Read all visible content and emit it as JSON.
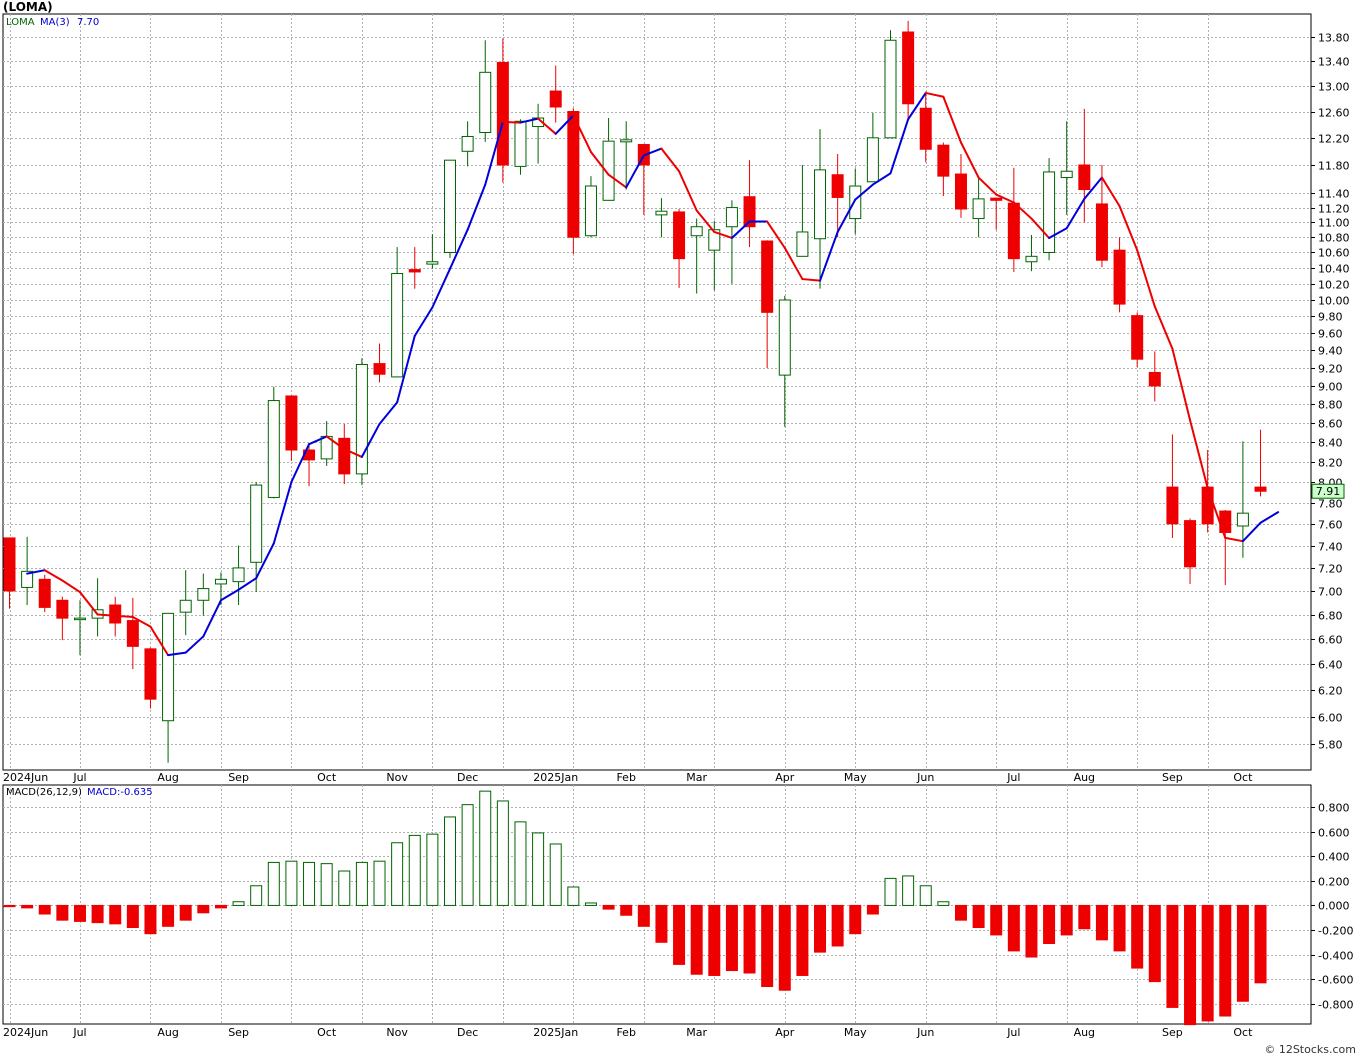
{
  "title": "(LOMA)",
  "credit": "© 12Stocks.com",
  "legend": {
    "price_symbol": "LOMA",
    "ma_label": "MA(3)",
    "ma_value": "7.70",
    "macd_label": "MACD(26,12,9)",
    "macd_value": "MACD:-0.635"
  },
  "last_price_label": "7.91",
  "colors": {
    "up": "#006400",
    "down": "#ee0000",
    "ma_up": "#0000dd",
    "ma_down": "#ee0000",
    "last_price_bg": "#ccffcc",
    "grid": "#b0b0b0"
  },
  "x_labels": [
    "2024Jun",
    "Jul",
    "Aug",
    "Sep",
    "Oct",
    "Nov",
    "Dec",
    "2025Jan",
    "Feb",
    "Mar",
    "Apr",
    "May",
    "Jun",
    "Jul",
    "Aug",
    "Sep",
    "Oct"
  ],
  "chart_data": [
    {
      "type": "candlestick",
      "title": "(LOMA)",
      "series_name": "LOMA",
      "y_ticks": [
        "5.80",
        "6.00",
        "6.20",
        "6.40",
        "6.60",
        "6.80",
        "7.00",
        "7.20",
        "7.40",
        "7.60",
        "7.80",
        "8.00",
        "8.20",
        "8.40",
        "8.60",
        "8.80",
        "9.00",
        "9.20",
        "9.40",
        "9.60",
        "9.80",
        "10.00",
        "10.20",
        "10.40",
        "10.60",
        "10.80",
        "11.00",
        "11.20",
        "11.40",
        "11.80",
        "12.20",
        "12.60",
        "13.00",
        "13.40",
        "13.80"
      ],
      "scale": "log",
      "ylim": [
        5.62,
        14.2
      ],
      "grid": true,
      "candles": [
        {
          "o": 7.47,
          "h": 7.47,
          "l": 6.85,
          "c": 7.0
        },
        {
          "o": 7.03,
          "h": 7.48,
          "l": 6.88,
          "c": 7.17
        },
        {
          "o": 7.1,
          "h": 7.14,
          "l": 6.82,
          "c": 6.86
        },
        {
          "o": 6.92,
          "h": 6.95,
          "l": 6.59,
          "c": 6.77
        },
        {
          "o": 6.77,
          "h": 6.92,
          "l": 6.47,
          "c": 6.77
        },
        {
          "o": 6.77,
          "h": 7.11,
          "l": 6.62,
          "c": 6.84
        },
        {
          "o": 6.88,
          "h": 6.95,
          "l": 6.62,
          "c": 6.73
        },
        {
          "o": 6.75,
          "h": 6.94,
          "l": 6.36,
          "c": 6.54
        },
        {
          "o": 6.52,
          "h": 6.53,
          "l": 6.06,
          "c": 6.13
        },
        {
          "o": 5.97,
          "h": 6.81,
          "l": 5.67,
          "c": 6.81
        },
        {
          "o": 6.82,
          "h": 7.18,
          "l": 6.63,
          "c": 6.92
        },
        {
          "o": 6.92,
          "h": 7.15,
          "l": 6.79,
          "c": 7.02
        },
        {
          "o": 7.06,
          "h": 7.16,
          "l": 6.88,
          "c": 7.1
        },
        {
          "o": 7.08,
          "h": 7.4,
          "l": 6.88,
          "c": 7.2
        },
        {
          "o": 7.25,
          "h": 8.0,
          "l": 6.99,
          "c": 7.97
        },
        {
          "o": 7.85,
          "h": 8.99,
          "l": 7.84,
          "c": 8.84
        },
        {
          "o": 8.89,
          "h": 8.89,
          "l": 8.21,
          "c": 8.32
        },
        {
          "o": 8.32,
          "h": 8.38,
          "l": 7.96,
          "c": 8.22
        },
        {
          "o": 8.23,
          "h": 8.62,
          "l": 8.16,
          "c": 8.46
        },
        {
          "o": 8.44,
          "h": 8.59,
          "l": 7.98,
          "c": 8.08
        },
        {
          "o": 8.08,
          "h": 9.31,
          "l": 7.97,
          "c": 9.24
        },
        {
          "o": 9.25,
          "h": 9.48,
          "l": 9.04,
          "c": 9.13
        },
        {
          "o": 9.1,
          "h": 10.67,
          "l": 9.1,
          "c": 10.33
        },
        {
          "o": 10.38,
          "h": 10.67,
          "l": 10.14,
          "c": 10.35
        },
        {
          "o": 10.45,
          "h": 10.84,
          "l": 10.39,
          "c": 10.48
        },
        {
          "o": 10.6,
          "h": 11.86,
          "l": 10.53,
          "c": 11.87
        },
        {
          "o": 12.0,
          "h": 12.45,
          "l": 11.78,
          "c": 12.22
        },
        {
          "o": 12.28,
          "h": 13.75,
          "l": 12.14,
          "c": 13.22
        },
        {
          "o": 13.38,
          "h": 13.78,
          "l": 11.55,
          "c": 11.8
        },
        {
          "o": 11.78,
          "h": 12.48,
          "l": 11.66,
          "c": 12.45
        },
        {
          "o": 12.37,
          "h": 12.72,
          "l": 11.82,
          "c": 12.5
        },
        {
          "o": 12.92,
          "h": 13.33,
          "l": 12.43,
          "c": 12.67
        },
        {
          "o": 12.6,
          "h": 12.65,
          "l": 10.58,
          "c": 10.8
        },
        {
          "o": 10.82,
          "h": 11.64,
          "l": 10.8,
          "c": 11.5
        },
        {
          "o": 11.3,
          "h": 12.5,
          "l": 11.33,
          "c": 12.15
        },
        {
          "o": 12.14,
          "h": 12.45,
          "l": 11.45,
          "c": 12.17
        },
        {
          "o": 12.1,
          "h": 12.11,
          "l": 11.1,
          "c": 11.8
        },
        {
          "o": 11.1,
          "h": 11.33,
          "l": 10.8,
          "c": 11.15
        },
        {
          "o": 11.14,
          "h": 11.18,
          "l": 10.15,
          "c": 10.52
        },
        {
          "o": 10.82,
          "h": 11.05,
          "l": 10.08,
          "c": 10.94
        },
        {
          "o": 10.63,
          "h": 11.02,
          "l": 10.12,
          "c": 10.9
        },
        {
          "o": 10.94,
          "h": 11.3,
          "l": 10.2,
          "c": 11.2
        },
        {
          "o": 11.35,
          "h": 11.87,
          "l": 10.67,
          "c": 10.94
        },
        {
          "o": 10.75,
          "h": 10.76,
          "l": 9.2,
          "c": 9.85
        },
        {
          "o": 9.12,
          "h": 10.05,
          "l": 8.56,
          "c": 10.0
        },
        {
          "o": 10.55,
          "h": 11.8,
          "l": 10.6,
          "c": 10.87
        },
        {
          "o": 10.78,
          "h": 12.33,
          "l": 10.14,
          "c": 11.73
        },
        {
          "o": 11.66,
          "h": 11.96,
          "l": 10.8,
          "c": 11.34
        },
        {
          "o": 11.05,
          "h": 11.75,
          "l": 10.84,
          "c": 11.5
        },
        {
          "o": 11.56,
          "h": 12.58,
          "l": 11.6,
          "c": 12.2
        },
        {
          "o": 12.2,
          "h": 13.92,
          "l": 12.25,
          "c": 13.75
        },
        {
          "o": 13.89,
          "h": 14.08,
          "l": 12.46,
          "c": 12.72
        },
        {
          "o": 12.65,
          "h": 12.91,
          "l": 11.84,
          "c": 12.03
        },
        {
          "o": 12.09,
          "h": 12.13,
          "l": 11.36,
          "c": 11.64
        },
        {
          "o": 11.67,
          "h": 11.96,
          "l": 11.06,
          "c": 11.18
        },
        {
          "o": 11.05,
          "h": 11.61,
          "l": 10.8,
          "c": 11.32
        },
        {
          "o": 11.33,
          "h": 11.34,
          "l": 10.9,
          "c": 11.3
        },
        {
          "o": 11.26,
          "h": 11.76,
          "l": 10.35,
          "c": 10.52
        },
        {
          "o": 10.48,
          "h": 10.83,
          "l": 10.36,
          "c": 10.55
        },
        {
          "o": 10.6,
          "h": 11.9,
          "l": 10.5,
          "c": 11.7
        },
        {
          "o": 11.62,
          "h": 12.45,
          "l": 11.1,
          "c": 11.71
        },
        {
          "o": 11.8,
          "h": 12.64,
          "l": 11.0,
          "c": 11.45
        },
        {
          "o": 11.25,
          "h": 11.8,
          "l": 10.41,
          "c": 10.5
        },
        {
          "o": 10.63,
          "h": 10.8,
          "l": 9.85,
          "c": 9.95
        },
        {
          "o": 9.81,
          "h": 9.85,
          "l": 9.21,
          "c": 9.3
        },
        {
          "o": 9.15,
          "h": 9.39,
          "l": 8.83,
          "c": 9.0
        },
        {
          "o": 7.95,
          "h": 8.48,
          "l": 7.47,
          "c": 7.6
        },
        {
          "o": 7.63,
          "h": 7.65,
          "l": 7.06,
          "c": 7.21
        },
        {
          "o": 7.95,
          "h": 8.32,
          "l": 7.52,
          "c": 7.6
        },
        {
          "o": 7.72,
          "h": 7.73,
          "l": 7.05,
          "c": 7.52
        },
        {
          "o": 7.58,
          "h": 8.41,
          "l": 7.29,
          "c": 7.7
        },
        {
          "o": 7.95,
          "h": 8.53,
          "l": 7.86,
          "c": 7.91
        }
      ],
      "ma": [
        7.15,
        7.18,
        7.09,
        6.99,
        6.8,
        6.79,
        6.78,
        6.7,
        6.47,
        6.49,
        6.62,
        6.92,
        7.01,
        7.11,
        7.42,
        8.0,
        8.38,
        8.46,
        8.33,
        8.25,
        8.59,
        8.82,
        9.57,
        9.91,
        10.39,
        10.9,
        11.52,
        12.44,
        12.43,
        12.49,
        12.26,
        12.54,
        11.99,
        11.66,
        11.48,
        11.94,
        12.04,
        11.71,
        11.16,
        10.87,
        10.79,
        11.01,
        11.01,
        10.66,
        10.26,
        10.24,
        10.87,
        11.31,
        11.52,
        11.68,
        12.48,
        12.89,
        12.83,
        12.13,
        11.62,
        11.38,
        11.27,
        11.05,
        10.79,
        10.92,
        11.32,
        11.62,
        11.22,
        10.63,
        9.92,
        9.42,
        8.63,
        7.94,
        7.47,
        7.44,
        7.61,
        7.71
      ]
    },
    {
      "type": "bar",
      "title": "MACD(26,12,9)",
      "series_name": "MACD:-0.635",
      "y_ticks": [
        "-0.800",
        "-0.600",
        "-0.400",
        "-0.200",
        "0.000",
        "0.200",
        "0.400",
        "0.600",
        "0.800"
      ],
      "ylim": [
        -0.965,
        0.98
      ],
      "grid": true,
      "values": [
        -0.01,
        -0.02,
        -0.07,
        -0.12,
        -0.13,
        -0.14,
        -0.15,
        -0.18,
        -0.23,
        -0.17,
        -0.12,
        -0.06,
        -0.02,
        0.03,
        0.16,
        0.35,
        0.36,
        0.35,
        0.34,
        0.28,
        0.35,
        0.36,
        0.51,
        0.57,
        0.58,
        0.72,
        0.82,
        0.93,
        0.85,
        0.68,
        0.59,
        0.5,
        0.15,
        0.02,
        -0.03,
        -0.08,
        -0.17,
        -0.3,
        -0.48,
        -0.56,
        -0.57,
        -0.53,
        -0.55,
        -0.66,
        -0.69,
        -0.57,
        -0.38,
        -0.33,
        -0.23,
        -0.07,
        0.22,
        0.24,
        0.16,
        0.03,
        -0.12,
        -0.18,
        -0.24,
        -0.37,
        -0.42,
        -0.31,
        -0.24,
        -0.19,
        -0.28,
        -0.37,
        -0.51,
        -0.62,
        -0.83,
        -0.97,
        -0.94,
        -0.9,
        -0.78,
        -0.63
      ]
    }
  ]
}
